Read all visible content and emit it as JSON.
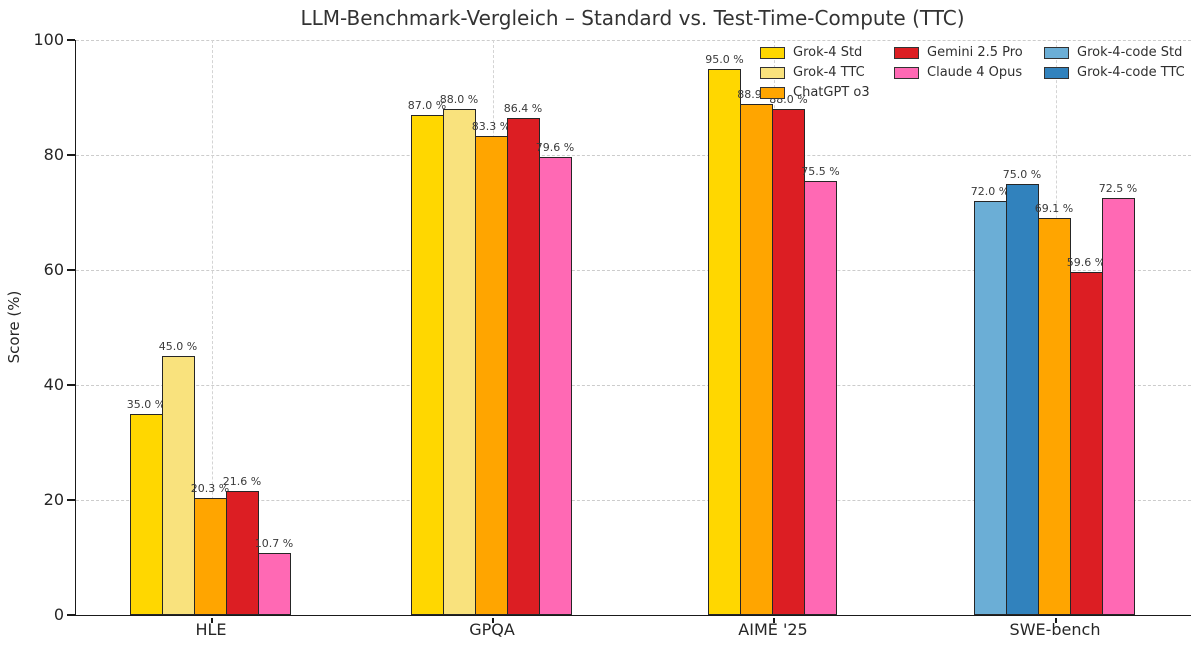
{
  "chart_data": {
    "type": "bar",
    "title": "LLM-Benchmark-Vergleich – Standard vs. Test-Time-Compute (TTC)",
    "xlabel": "",
    "ylabel": "Score (%)",
    "ylim": [
      0,
      100
    ],
    "yticks": [
      0,
      20,
      40,
      60,
      80,
      100
    ],
    "grid": "dashed gray, horizontal at yticks and vertical at category centers",
    "legend_position": "top right, 3 columns, no frame",
    "value_label_suffix": " %",
    "categories": [
      "HLE",
      "GPQA",
      "AIME '25",
      "SWE-bench"
    ],
    "series_colors": {
      "Grok-4 Std": "#FFD700",
      "Grok-4 TTC": "#F9E27D",
      "ChatGPT o3": "#FFA500",
      "Gemini 2.5 Pro": "#DC1E23",
      "Claude 4 Opus": "#FF69B4",
      "Grok-4-code Std": "#6BAED6",
      "Grok-4-code TTC": "#3182BD"
    },
    "legend_columns": [
      [
        "Grok-4 Std",
        "Grok-4 TTC",
        "ChatGPT o3"
      ],
      [
        "Gemini 2.5 Pro",
        "Claude 4 Opus"
      ],
      [
        "Grok-4-code Std",
        "Grok-4-code TTC"
      ]
    ],
    "groups": [
      {
        "category": "HLE",
        "bars": [
          {
            "series": "Grok-4 Std",
            "value": 35.0
          },
          {
            "series": "Grok-4 TTC",
            "value": 45.0
          },
          {
            "series": "ChatGPT o3",
            "value": 20.3
          },
          {
            "series": "Gemini 2.5 Pro",
            "value": 21.6
          },
          {
            "series": "Claude 4 Opus",
            "value": 10.7
          }
        ]
      },
      {
        "category": "GPQA",
        "bars": [
          {
            "series": "Grok-4 Std",
            "value": 87.0
          },
          {
            "series": "Grok-4 TTC",
            "value": 88.0
          },
          {
            "series": "ChatGPT o3",
            "value": 83.3
          },
          {
            "series": "Gemini 2.5 Pro",
            "value": 86.4
          },
          {
            "series": "Claude 4 Opus",
            "value": 79.6
          }
        ]
      },
      {
        "category": "AIME '25",
        "bars": [
          {
            "series": "Grok-4 Std",
            "value": 95.0
          },
          {
            "series": "ChatGPT o3",
            "value": 88.9
          },
          {
            "series": "Gemini 2.5 Pro",
            "value": 88.0
          },
          {
            "series": "Claude 4 Opus",
            "value": 75.5
          }
        ]
      },
      {
        "category": "SWE-bench",
        "bars": [
          {
            "series": "Grok-4-code Std",
            "value": 72.0
          },
          {
            "series": "Grok-4-code TTC",
            "value": 75.0
          },
          {
            "series": "ChatGPT o3",
            "value": 69.1
          },
          {
            "series": "Gemini 2.5 Pro",
            "value": 59.6
          },
          {
            "series": "Claude 4 Opus",
            "value": 72.5
          }
        ]
      }
    ]
  }
}
